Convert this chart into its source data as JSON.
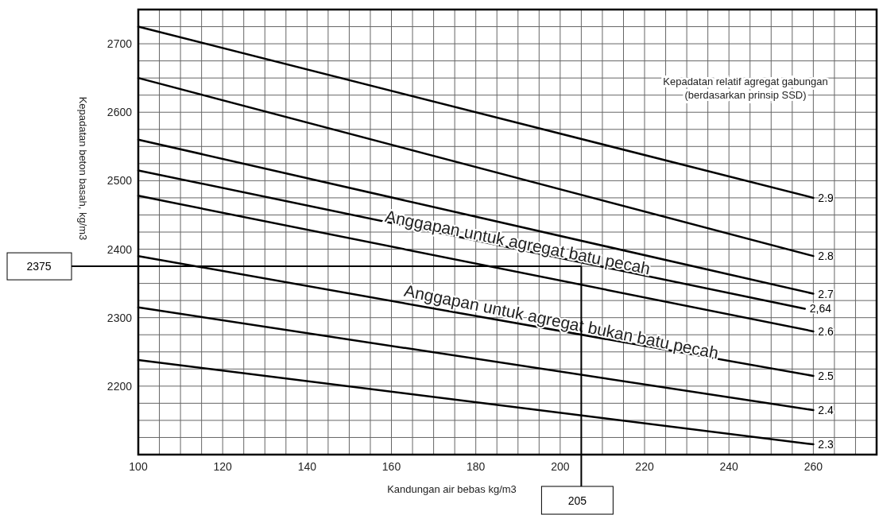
{
  "chart_data": {
    "type": "line",
    "xlabel": "Kandungan air bebas kg/m3",
    "ylabel": "Kepadatan beton basah, kg/m3",
    "legend_title": "Kepadatan relatif agregat gabungan\n(berdasarkan prinsip SSD)",
    "xlim": [
      100,
      275
    ],
    "ylim": [
      2100,
      2750
    ],
    "xticks": [
      100,
      {
        "value": 105,
        "label": null
      },
      {
        "value": 110,
        "label": null
      },
      {
        "value": 115,
        "label": null
      },
      120,
      {
        "value": 125,
        "label": null
      },
      {
        "value": 130,
        "label": null
      },
      {
        "value": 135,
        "label": null
      },
      140,
      {
        "value": 145,
        "label": null
      },
      {
        "value": 150,
        "label": null
      },
      {
        "value": 155,
        "label": null
      },
      160,
      {
        "value": 165,
        "label": null
      },
      {
        "value": 170,
        "label": null
      },
      {
        "value": 175,
        "label": null
      },
      180,
      {
        "value": 185,
        "label": null
      },
      {
        "value": 190,
        "label": null
      },
      {
        "value": 195,
        "label": null
      },
      200,
      {
        "value": 205,
        "label": null
      },
      {
        "value": 210,
        "label": null
      },
      {
        "value": 215,
        "label": null
      },
      220,
      {
        "value": 225,
        "label": null
      },
      {
        "value": 230,
        "label": null
      },
      {
        "value": 235,
        "label": null
      },
      240,
      {
        "value": 245,
        "label": null
      },
      {
        "value": 250,
        "label": null
      },
      {
        "value": 255,
        "label": null
      },
      260,
      {
        "value": 265,
        "label": null
      },
      {
        "value": 270,
        "label": null
      }
    ],
    "yticks": [
      {
        "value": 2125,
        "label": null
      },
      {
        "value": 2150,
        "label": null
      },
      {
        "value": 2175,
        "label": null
      },
      2200,
      {
        "value": 2225,
        "label": null
      },
      {
        "value": 2250,
        "label": null
      },
      {
        "value": 2275,
        "label": null
      },
      2300,
      {
        "value": 2325,
        "label": null
      },
      {
        "value": 2350,
        "label": null
      },
      {
        "value": 2375,
        "label": null
      },
      2400,
      {
        "value": 2425,
        "label": null
      },
      {
        "value": 2450,
        "label": null
      },
      {
        "value": 2475,
        "label": null
      },
      2500,
      {
        "value": 2525,
        "label": null
      },
      {
        "value": 2550,
        "label": null
      },
      {
        "value": 2575,
        "label": null
      },
      2600,
      {
        "value": 2625,
        "label": null
      },
      {
        "value": 2650,
        "label": null
      },
      {
        "value": 2675,
        "label": null
      },
      2700,
      {
        "value": 2725,
        "label": null
      }
    ],
    "grid": true,
    "series": [
      {
        "name": "2.9",
        "color": "#000000",
        "x": [
          100,
          260
        ],
        "values": [
          2725,
          2475
        ]
      },
      {
        "name": "2.8",
        "color": "#000000",
        "x": [
          100,
          260
        ],
        "values": [
          2650,
          2390
        ]
      },
      {
        "name": "2.7",
        "color": "#000000",
        "x": [
          100,
          260
        ],
        "values": [
          2560,
          2335
        ]
      },
      {
        "name": "2,64",
        "color": "#000000",
        "x": [
          100,
          258
        ],
        "values": [
          2515,
          2313
        ]
      },
      {
        "name": "2.6",
        "color": "#000000",
        "x": [
          100,
          260
        ],
        "values": [
          2478,
          2280
        ]
      },
      {
        "name": "2.5",
        "color": "#000000",
        "x": [
          100,
          260
        ],
        "values": [
          2390,
          2215
        ]
      },
      {
        "name": "2.4",
        "color": "#000000",
        "x": [
          100,
          260
        ],
        "values": [
          2315,
          2165
        ]
      },
      {
        "name": "2.3",
        "color": "#000000",
        "x": [
          100,
          260
        ],
        "values": [
          2238,
          2115
        ]
      }
    ],
    "ref_lines": [
      {
        "axis": "y",
        "value": 2375,
        "label": "2375"
      },
      {
        "axis": "x",
        "value": 205,
        "label": "205"
      }
    ],
    "annotations": [
      "Anggapan untuk agregat batu pecah",
      "Anggapan untuk agregat bukan batu pecah"
    ]
  }
}
